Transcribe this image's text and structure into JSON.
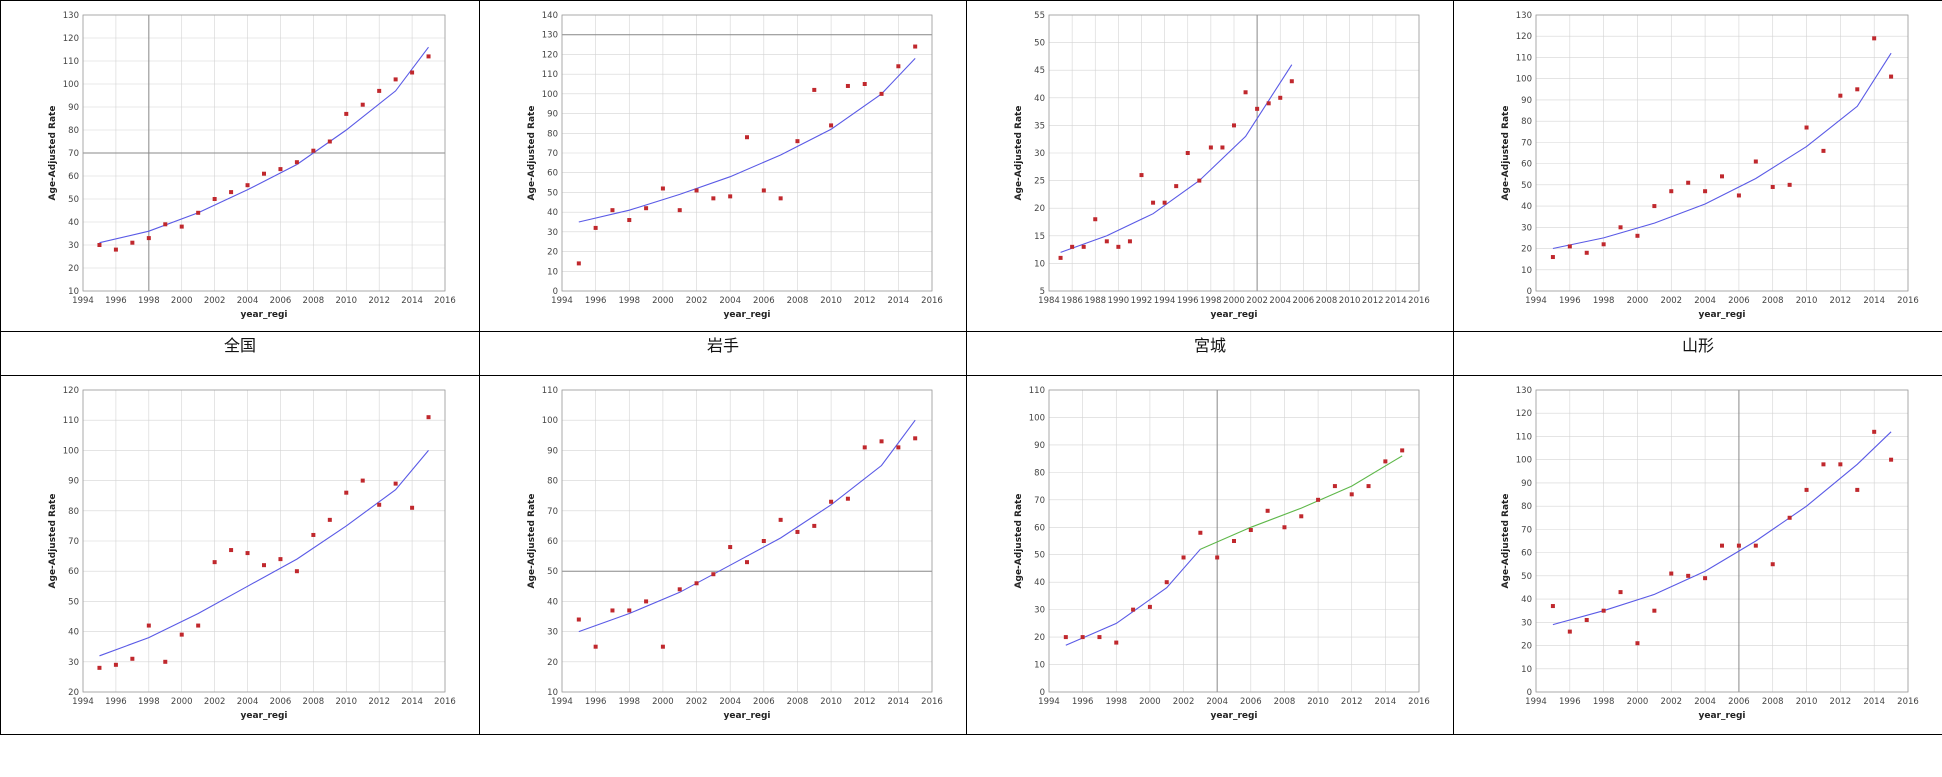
{
  "labels": {
    "zenkoku": "全国",
    "iwate": "岩手",
    "miyagi": "宮城",
    "yamagata": "山形"
  },
  "colors": {
    "point": "#c0282d",
    "fit": "#5a5ae6",
    "fit_alt": "#5fb84a",
    "grid": "#d4d4d4"
  },
  "chart_data": [
    {
      "type": "scatter",
      "label": "全国",
      "xlabel": "year_regi",
      "ylabel": "Age-Adjusted Rate",
      "xlim": [
        1994,
        2016
      ],
      "ylim": [
        10,
        130
      ],
      "xticks": [
        1994,
        1996,
        1998,
        2000,
        2002,
        2004,
        2006,
        2008,
        2010,
        2012,
        2014,
        2016
      ],
      "yticks": [
        10,
        20,
        30,
        40,
        50,
        60,
        70,
        80,
        90,
        100,
        110,
        120,
        130
      ],
      "grid": true,
      "x_dividers": [
        1998
      ],
      "y_dividers": [
        70
      ],
      "points": [
        [
          1995,
          30
        ],
        [
          1996,
          28
        ],
        [
          1997,
          31
        ],
        [
          1998,
          33
        ],
        [
          1999,
          39
        ],
        [
          2000,
          38
        ],
        [
          2001,
          44
        ],
        [
          2002,
          50
        ],
        [
          2003,
          53
        ],
        [
          2004,
          56
        ],
        [
          2005,
          61
        ],
        [
          2006,
          63
        ],
        [
          2007,
          66
        ],
        [
          2008,
          71
        ],
        [
          2009,
          75
        ],
        [
          2010,
          87
        ],
        [
          2011,
          91
        ],
        [
          2012,
          97
        ],
        [
          2013,
          102
        ],
        [
          2014,
          105
        ],
        [
          2015,
          112
        ]
      ],
      "fit": [
        [
          [
            1995,
            31
          ],
          [
            1998,
            36
          ],
          [
            2001,
            44
          ],
          [
            2004,
            54
          ],
          [
            2007,
            65
          ],
          [
            2010,
            80
          ],
          [
            2013,
            97
          ],
          [
            2015,
            116
          ]
        ]
      ]
    },
    {
      "type": "scatter",
      "label": "岩手",
      "xlabel": "year_regi",
      "ylabel": "Age-Adjusted Rate",
      "xlim": [
        1994,
        2016
      ],
      "ylim": [
        0,
        140
      ],
      "xticks": [
        1994,
        1996,
        1998,
        2000,
        2002,
        2004,
        2006,
        2008,
        2010,
        2012,
        2014,
        2016
      ],
      "yticks": [
        0,
        10,
        20,
        30,
        40,
        50,
        60,
        70,
        80,
        90,
        100,
        110,
        120,
        130,
        140
      ],
      "grid": true,
      "x_dividers": [],
      "y_dividers": [
        130
      ],
      "points": [
        [
          1995,
          14
        ],
        [
          1996,
          32
        ],
        [
          1997,
          41
        ],
        [
          1998,
          36
        ],
        [
          1999,
          42
        ],
        [
          2000,
          52
        ],
        [
          2001,
          41
        ],
        [
          2002,
          51
        ],
        [
          2003,
          47
        ],
        [
          2004,
          48
        ],
        [
          2005,
          78
        ],
        [
          2006,
          51
        ],
        [
          2007,
          47
        ],
        [
          2008,
          76
        ],
        [
          2009,
          102
        ],
        [
          2010,
          84
        ],
        [
          2011,
          104
        ],
        [
          2012,
          105
        ],
        [
          2013,
          100
        ],
        [
          2014,
          114
        ],
        [
          2015,
          124
        ]
      ],
      "fit": [
        [
          [
            1995,
            35
          ],
          [
            1998,
            41
          ],
          [
            2001,
            49
          ],
          [
            2004,
            58
          ],
          [
            2007,
            69
          ],
          [
            2010,
            82
          ],
          [
            2013,
            100
          ],
          [
            2015,
            118
          ]
        ]
      ]
    },
    {
      "type": "scatter",
      "label": "宮城",
      "xlabel": "year_regi",
      "ylabel": "Age-Adjusted Rate",
      "xlim": [
        1984,
        2016
      ],
      "ylim": [
        5,
        55
      ],
      "xticks": [
        1984,
        1986,
        1988,
        1990,
        1992,
        1994,
        1996,
        1998,
        2000,
        2002,
        2004,
        2006,
        2008,
        2010,
        2012,
        2014,
        2016
      ],
      "yticks": [
        5,
        10,
        15,
        20,
        25,
        30,
        35,
        40,
        45,
        50,
        55
      ],
      "grid": true,
      "x_dividers": [
        2002
      ],
      "y_dividers": [],
      "points": [
        [
          1985,
          11
        ],
        [
          1986,
          13
        ],
        [
          1987,
          13
        ],
        [
          1988,
          18
        ],
        [
          1989,
          14
        ],
        [
          1990,
          13
        ],
        [
          1991,
          14
        ],
        [
          1992,
          26
        ],
        [
          1993,
          21
        ],
        [
          1994,
          21
        ],
        [
          1995,
          24
        ],
        [
          1996,
          30
        ],
        [
          1997,
          25
        ],
        [
          1998,
          31
        ],
        [
          1999,
          31
        ],
        [
          2000,
          35
        ],
        [
          2001,
          41
        ],
        [
          2002,
          38
        ],
        [
          2003,
          39
        ],
        [
          2004,
          40
        ],
        [
          2005,
          43
        ]
      ],
      "fit": [
        [
          [
            1985,
            12
          ],
          [
            1989,
            15
          ],
          [
            1993,
            19
          ],
          [
            1997,
            25
          ],
          [
            2001,
            33
          ],
          [
            2005,
            46
          ]
        ]
      ]
    },
    {
      "type": "scatter",
      "label": "山形",
      "xlabel": "year_regi",
      "ylabel": "Age-Adjusted Rate",
      "xlim": [
        1994,
        2016
      ],
      "ylim": [
        0,
        130
      ],
      "xticks": [
        1994,
        1996,
        1998,
        2000,
        2002,
        2004,
        2006,
        2008,
        2010,
        2012,
        2014,
        2016
      ],
      "yticks": [
        0,
        10,
        20,
        30,
        40,
        50,
        60,
        70,
        80,
        90,
        100,
        110,
        120,
        130
      ],
      "grid": true,
      "x_dividers": [],
      "y_dividers": [],
      "points": [
        [
          1995,
          16
        ],
        [
          1996,
          21
        ],
        [
          1997,
          18
        ],
        [
          1998,
          22
        ],
        [
          1999,
          30
        ],
        [
          2000,
          26
        ],
        [
          2001,
          40
        ],
        [
          2002,
          47
        ],
        [
          2003,
          51
        ],
        [
          2004,
          47
        ],
        [
          2005,
          54
        ],
        [
          2006,
          45
        ],
        [
          2007,
          61
        ],
        [
          2008,
          49
        ],
        [
          2009,
          50
        ],
        [
          2010,
          77
        ],
        [
          2011,
          66
        ],
        [
          2012,
          92
        ],
        [
          2013,
          95
        ],
        [
          2014,
          119
        ],
        [
          2015,
          101
        ]
      ],
      "fit": [
        [
          [
            1995,
            20
          ],
          [
            1998,
            25
          ],
          [
            2001,
            32
          ],
          [
            2004,
            41
          ],
          [
            2007,
            53
          ],
          [
            2010,
            68
          ],
          [
            2013,
            87
          ],
          [
            2015,
            112
          ]
        ]
      ]
    },
    {
      "type": "scatter",
      "label": "",
      "xlabel": "year_regi",
      "ylabel": "Age-Adjusted Rate",
      "xlim": [
        1994,
        2016
      ],
      "ylim": [
        20,
        120
      ],
      "xticks": [
        1994,
        1996,
        1998,
        2000,
        2002,
        2004,
        2006,
        2008,
        2010,
        2012,
        2014,
        2016
      ],
      "yticks": [
        20,
        30,
        40,
        50,
        60,
        70,
        80,
        90,
        100,
        110,
        120
      ],
      "grid": true,
      "x_dividers": [],
      "y_dividers": [],
      "points": [
        [
          1995,
          28
        ],
        [
          1996,
          29
        ],
        [
          1997,
          31
        ],
        [
          1998,
          42
        ],
        [
          1999,
          30
        ],
        [
          2000,
          39
        ],
        [
          2001,
          42
        ],
        [
          2002,
          63
        ],
        [
          2003,
          67
        ],
        [
          2004,
          66
        ],
        [
          2005,
          62
        ],
        [
          2006,
          64
        ],
        [
          2007,
          60
        ],
        [
          2008,
          72
        ],
        [
          2009,
          77
        ],
        [
          2010,
          86
        ],
        [
          2011,
          90
        ],
        [
          2012,
          82
        ],
        [
          2013,
          89
        ],
        [
          2014,
          81
        ],
        [
          2015,
          111
        ]
      ],
      "fit": [
        [
          [
            1995,
            32
          ],
          [
            1998,
            38
          ],
          [
            2001,
            46
          ],
          [
            2004,
            55
          ],
          [
            2007,
            64
          ],
          [
            2010,
            75
          ],
          [
            2013,
            87
          ],
          [
            2015,
            100
          ]
        ]
      ]
    },
    {
      "type": "scatter",
      "label": "",
      "xlabel": "year_regi",
      "ylabel": "Age-Adjusted Rate",
      "xlim": [
        1994,
        2016
      ],
      "ylim": [
        10,
        110
      ],
      "xticks": [
        1994,
        1996,
        1998,
        2000,
        2002,
        2004,
        2006,
        2008,
        2010,
        2012,
        2014,
        2016
      ],
      "yticks": [
        10,
        20,
        30,
        40,
        50,
        60,
        70,
        80,
        90,
        100,
        110
      ],
      "grid": true,
      "x_dividers": [],
      "y_dividers": [
        50
      ],
      "points": [
        [
          1995,
          34
        ],
        [
          1996,
          25
        ],
        [
          1997,
          37
        ],
        [
          1998,
          37
        ],
        [
          1999,
          40
        ],
        [
          2000,
          25
        ],
        [
          2001,
          44
        ],
        [
          2002,
          46
        ],
        [
          2003,
          49
        ],
        [
          2004,
          58
        ],
        [
          2005,
          53
        ],
        [
          2006,
          60
        ],
        [
          2007,
          67
        ],
        [
          2008,
          63
        ],
        [
          2009,
          65
        ],
        [
          2010,
          73
        ],
        [
          2011,
          74
        ],
        [
          2012,
          91
        ],
        [
          2013,
          93
        ],
        [
          2014,
          91
        ],
        [
          2015,
          94
        ]
      ],
      "fit": [
        [
          [
            1995,
            30
          ],
          [
            1998,
            36
          ],
          [
            2001,
            43
          ],
          [
            2004,
            52
          ],
          [
            2007,
            61
          ],
          [
            2010,
            72
          ],
          [
            2013,
            85
          ],
          [
            2015,
            100
          ]
        ]
      ]
    },
    {
      "type": "scatter",
      "label": "",
      "xlabel": "year_regi",
      "ylabel": "Age-Adjusted Rate",
      "xlim": [
        1994,
        2016
      ],
      "ylim": [
        0,
        110
      ],
      "xticks": [
        1994,
        1996,
        1998,
        2000,
        2002,
        2004,
        2006,
        2008,
        2010,
        2012,
        2014,
        2016
      ],
      "yticks": [
        0,
        10,
        20,
        30,
        40,
        50,
        60,
        70,
        80,
        90,
        100,
        110
      ],
      "grid": true,
      "x_dividers": [
        2004
      ],
      "y_dividers": [],
      "points": [
        [
          1995,
          20
        ],
        [
          1996,
          20
        ],
        [
          1997,
          20
        ],
        [
          1998,
          18
        ],
        [
          1999,
          30
        ],
        [
          2000,
          31
        ],
        [
          2001,
          40
        ],
        [
          2002,
          49
        ],
        [
          2003,
          58
        ],
        [
          2004,
          49
        ],
        [
          2005,
          55
        ],
        [
          2006,
          59
        ],
        [
          2007,
          66
        ],
        [
          2008,
          60
        ],
        [
          2009,
          64
        ],
        [
          2010,
          70
        ],
        [
          2011,
          75
        ],
        [
          2012,
          72
        ],
        [
          2013,
          75
        ],
        [
          2014,
          84
        ],
        [
          2015,
          88
        ]
      ],
      "fit": [
        [
          [
            1995,
            17
          ],
          [
            1998,
            25
          ],
          [
            2001,
            38
          ],
          [
            2003,
            52
          ]
        ],
        [
          [
            2003,
            52
          ],
          [
            2006,
            60
          ],
          [
            2009,
            67
          ],
          [
            2012,
            75
          ],
          [
            2015,
            86
          ]
        ]
      ]
    },
    {
      "type": "scatter",
      "label": "",
      "xlabel": "year_regi",
      "ylabel": "Age-Adjusted Rate",
      "xlim": [
        1994,
        2016
      ],
      "ylim": [
        0,
        130
      ],
      "xticks": [
        1994,
        1996,
        1998,
        2000,
        2002,
        2004,
        2006,
        2008,
        2010,
        2012,
        2014,
        2016
      ],
      "yticks": [
        0,
        10,
        20,
        30,
        40,
        50,
        60,
        70,
        80,
        90,
        100,
        110,
        120,
        130
      ],
      "grid": true,
      "x_dividers": [
        2006
      ],
      "y_dividers": [],
      "points": [
        [
          1995,
          37
        ],
        [
          1996,
          26
        ],
        [
          1997,
          31
        ],
        [
          1998,
          35
        ],
        [
          1999,
          43
        ],
        [
          2000,
          21
        ],
        [
          2001,
          35
        ],
        [
          2002,
          51
        ],
        [
          2003,
          50
        ],
        [
          2004,
          49
        ],
        [
          2005,
          63
        ],
        [
          2006,
          63
        ],
        [
          2007,
          63
        ],
        [
          2008,
          55
        ],
        [
          2009,
          75
        ],
        [
          2010,
          87
        ],
        [
          2011,
          98
        ],
        [
          2012,
          98
        ],
        [
          2013,
          87
        ],
        [
          2014,
          112
        ],
        [
          2015,
          100
        ]
      ],
      "fit": [
        [
          [
            1995,
            29
          ],
          [
            1998,
            35
          ],
          [
            2001,
            42
          ],
          [
            2004,
            52
          ],
          [
            2007,
            65
          ],
          [
            2010,
            80
          ],
          [
            2013,
            98
          ],
          [
            2015,
            112
          ]
        ]
      ]
    }
  ]
}
